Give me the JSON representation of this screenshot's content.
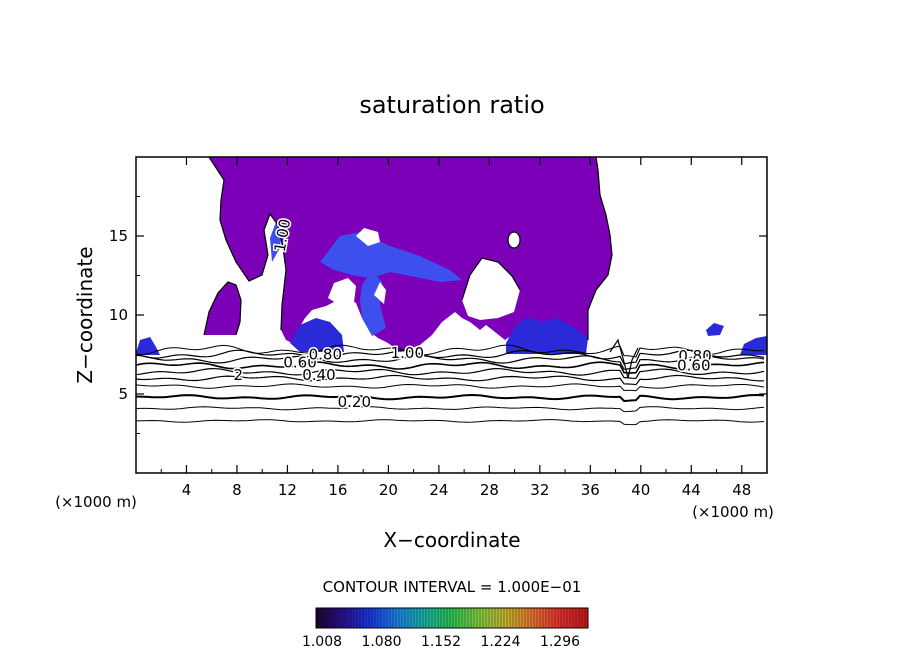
{
  "chart_data": {
    "type": "contour",
    "title": "saturation ratio",
    "xlabel": "X−coordinate",
    "ylabel": "Z−coordinate",
    "x_unit_label": "(×1000 m)",
    "xlim": [
      0,
      50
    ],
    "ylim": [
      0,
      20
    ],
    "x_ticks": [
      4,
      8,
      12,
      16,
      20,
      24,
      28,
      32,
      36,
      40,
      44,
      48
    ],
    "y_ticks": [
      5,
      10,
      15
    ],
    "contour_interval_label": "CONTOUR INTERVAL = 1.000E−01",
    "contour_labels": [
      {
        "text": "0.20",
        "x": 17.3,
        "z": 4.5
      },
      {
        "text": "0.40",
        "x": 14.5,
        "z": 6.2
      },
      {
        "text": "0.60",
        "x": 13.0,
        "z": 7.0
      },
      {
        "text": "0.80",
        "x": 15.0,
        "z": 7.5
      },
      {
        "text": "1.00",
        "x": 21.5,
        "z": 7.6
      },
      {
        "text": "1.00",
        "x": 12.0,
        "z": 15.3
      },
      {
        "text": "0.80",
        "x": 44.3,
        "z": 7.4
      },
      {
        "text": "0.60",
        "x": 44.2,
        "z": 6.8
      },
      {
        "text": "2",
        "x": 8.1,
        "z": 6.2
      }
    ],
    "color_scale": {
      "ticks": [
        "1.008",
        "1.080",
        "1.152",
        "1.224",
        "1.296"
      ],
      "colors": [
        "#1c0530",
        "#2a1090",
        "#1838e0",
        "#1e7fe0",
        "#18b0a0",
        "#30c050",
        "#80c840",
        "#c8b030",
        "#e07030",
        "#e03030",
        "#c01818"
      ]
    },
    "fill_color": "#7c00b8",
    "strong_color": "#2a2ad8",
    "mid_color": "#3d50ee"
  }
}
